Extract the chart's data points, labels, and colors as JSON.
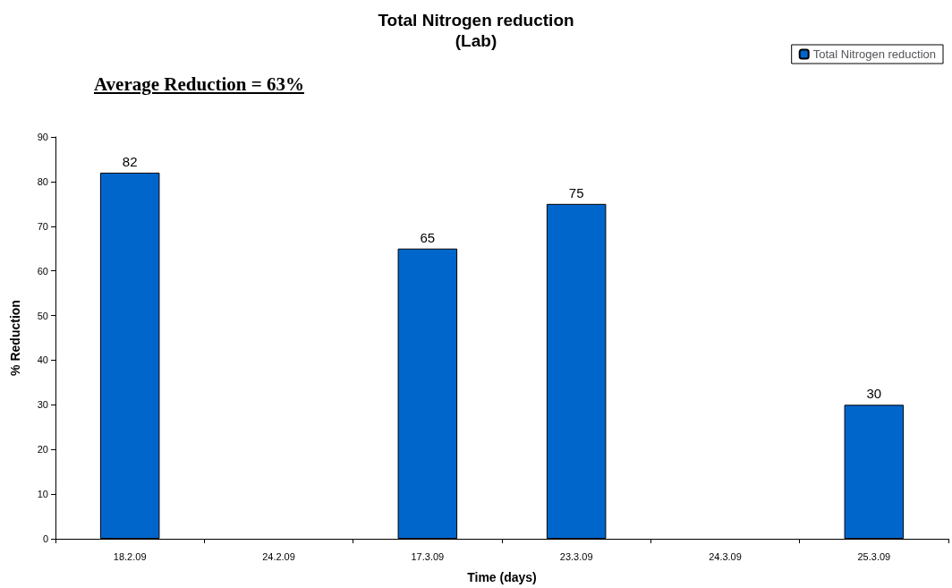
{
  "chart_data": {
    "type": "bar",
    "title": "Total Nitrogen reduction",
    "subtitle": "(Lab)",
    "xlabel": "Time (days)",
    "ylabel": "% Reduction",
    "categories": [
      "18.2.09",
      "24.2.09",
      "17.3.09",
      "23.3.09",
      "24.3.09",
      "25.3.09"
    ],
    "series": [
      {
        "name": "Total Nitrogen reduction",
        "color": "#0066cc",
        "values": [
          82,
          null,
          65,
          75,
          null,
          30
        ]
      }
    ],
    "ylim": [
      0,
      90
    ],
    "yticks": [
      0,
      10,
      20,
      30,
      40,
      50,
      60,
      70,
      80,
      90
    ],
    "grid": false,
    "legend": "top right",
    "data_labels": true,
    "annotations": [
      "Average Reduction = 63%"
    ]
  }
}
